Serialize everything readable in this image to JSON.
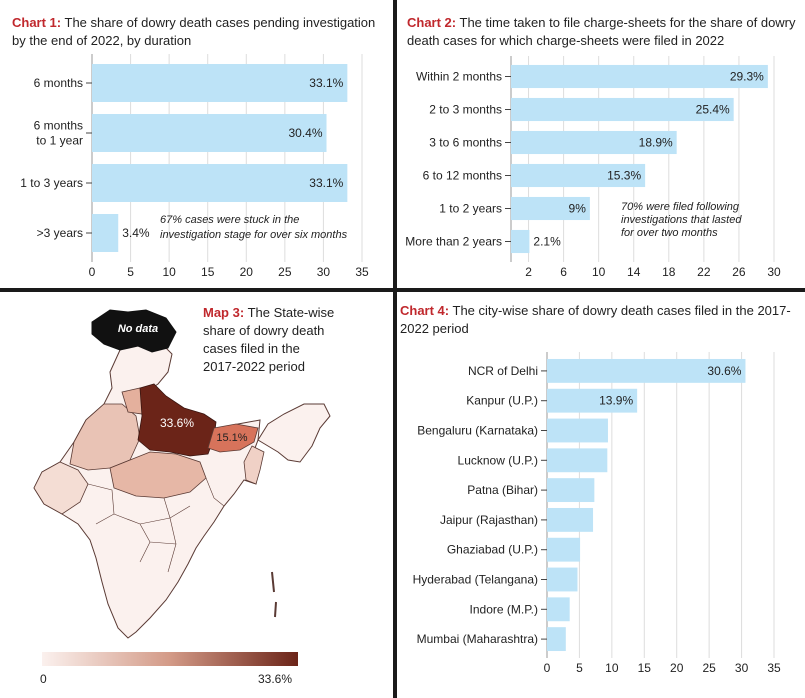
{
  "chart_data": [
    {
      "type": "bar",
      "orientation": "horizontal",
      "label": "Chart 1:",
      "title": "The share of dowry death cases pending investigation by the end of 2022, by duration",
      "categories": [
        "6 months",
        "6 months to 1 year",
        "1 to 3 years",
        ">3 years"
      ],
      "category_lines": [
        [
          "6 months"
        ],
        [
          "6 months",
          "to 1 year"
        ],
        [
          "1 to 3 years"
        ],
        [
          ">3 years"
        ]
      ],
      "values": [
        33.1,
        30.4,
        33.1,
        3.4
      ],
      "value_labels": [
        "33.1%",
        "30.4%",
        "33.1%",
        "3.4%"
      ],
      "xlim": [
        0,
        35
      ],
      "xticks": [
        0,
        5,
        10,
        15,
        20,
        25,
        30,
        35
      ],
      "annotation": [
        "67% cases were stuck in the",
        "investigation stage for over six months"
      ],
      "bar_color": "#bde3f7",
      "grid": true
    },
    {
      "type": "bar",
      "orientation": "horizontal",
      "label": "Chart 2:",
      "title": "The time taken to file charge-sheets for the share of dowry death cases for which charge-sheets were filed in 2022",
      "categories": [
        "Within 2 months",
        "2 to 3 months",
        "3 to 6 months",
        "6 to 12 months",
        "1 to 2 years",
        "More than 2 years"
      ],
      "values": [
        29.3,
        25.4,
        18.9,
        15.3,
        9,
        2.1
      ],
      "value_labels": [
        "29.3%",
        "25.4%",
        "18.9%",
        "15.3%",
        "9%",
        "2.1%"
      ],
      "xlim": [
        0,
        30
      ],
      "xticks": [
        2,
        6,
        10,
        14,
        18,
        22,
        26,
        30
      ],
      "annotation": [
        "70% were filed following",
        "investigations that lasted",
        "for over two months"
      ],
      "bar_color": "#bde3f7",
      "grid": true
    },
    {
      "type": "bar",
      "orientation": "horizontal",
      "label": "Chart 4:",
      "title": "The city-wise share of dowry death cases filed in the 2017-2022 period",
      "categories": [
        "NCR of Delhi",
        "Kanpur (U.P.)",
        "Bengaluru (Karnataka)",
        "Lucknow (U.P.)",
        "Patna (Bihar)",
        "Jaipur (Rajasthan)",
        "Ghaziabad (U.P.)",
        "Hyderabad (Telangana)",
        "Indore (M.P.)",
        "Mumbai (Maharashtra)"
      ],
      "values": [
        30.6,
        13.9,
        9.4,
        9.3,
        7.3,
        7.1,
        5.1,
        4.7,
        3.5,
        2.9
      ],
      "value_labels": [
        "30.6%",
        "13.9%",
        "",
        "",
        "",
        "",
        "",
        "",
        "",
        ""
      ],
      "xlim": [
        0,
        35
      ],
      "xticks": [
        0,
        5,
        10,
        15,
        20,
        25,
        30,
        35
      ],
      "bar_color": "#bde3f7",
      "grid": true
    }
  ],
  "map": {
    "label": "Map 3:",
    "title_lines": [
      "The State-wise",
      "share of dowry death",
      "cases filed in the",
      "2017-2022 period"
    ],
    "no_data_label": "No data",
    "up_value": "33.6%",
    "bihar_value": "15.1%",
    "legend_min": "0",
    "legend_max": "33.6%",
    "colors": {
      "low": "#fbf1ee",
      "mid": "#d39a87",
      "high": "#6b2418",
      "no_data": "#111111",
      "border": "#5a3a34"
    }
  }
}
